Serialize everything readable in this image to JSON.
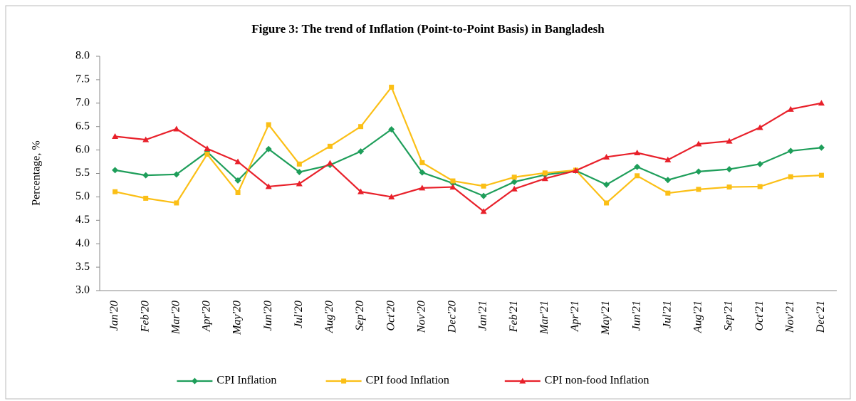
{
  "chart_data": {
    "type": "line",
    "title": "Figure 3: The trend of Inflation (Point-to-Point Basis) in Bangladesh",
    "y_label": "Percentage, %",
    "categories": [
      "Jan'20",
      "Feb'20",
      "Mar'20",
      "Apr'20",
      "May'20",
      "Jun'20",
      "Jul'20",
      "Aug'20",
      "Sep'20",
      "Oct'20",
      "Nov'20",
      "Dec'20",
      "Jan'21",
      "Feb'21",
      "Mar'21",
      "Apr'21",
      "May'21",
      "Jun'21",
      "Jul'21",
      "Aug'21",
      "Sep'21",
      "Oct'21",
      "Nov'21",
      "Dec'21"
    ],
    "series": [
      {
        "name": "CPI Inflation",
        "color": "#1e9e5a",
        "marker": "diamond",
        "values": [
          5.57,
          5.46,
          5.48,
          5.96,
          5.35,
          6.02,
          5.53,
          5.68,
          5.97,
          6.44,
          5.52,
          5.29,
          5.02,
          5.32,
          5.47,
          5.56,
          5.26,
          5.64,
          5.36,
          5.54,
          5.59,
          5.7,
          5.98,
          6.05
        ]
      },
      {
        "name": "CPI food Inflation",
        "color": "#fbbf16",
        "marker": "square",
        "values": [
          5.11,
          4.97,
          4.87,
          5.91,
          5.09,
          6.54,
          5.7,
          6.08,
          6.5,
          7.34,
          5.73,
          5.34,
          5.23,
          5.42,
          5.51,
          5.57,
          4.87,
          5.45,
          5.08,
          5.16,
          5.21,
          5.22,
          5.43,
          5.46
        ]
      },
      {
        "name": "CPI non-food Inflation",
        "color": "#e8202a",
        "marker": "triangle",
        "values": [
          6.29,
          6.22,
          6.45,
          6.03,
          5.75,
          5.22,
          5.28,
          5.72,
          5.11,
          5.0,
          5.19,
          5.21,
          4.69,
          5.17,
          5.39,
          5.56,
          5.85,
          5.94,
          5.79,
          6.13,
          6.19,
          6.48,
          6.87,
          7.0
        ]
      }
    ],
    "ylim": [
      3.0,
      8.0
    ],
    "yticks": [
      {
        "value": 3,
        "label": "3.0"
      },
      {
        "value": 3.5,
        "label": "3.5"
      },
      {
        "value": 4,
        "label": "4.0"
      },
      {
        "value": 4.5,
        "label": "4.5"
      },
      {
        "value": 5,
        "label": "5.0"
      },
      {
        "value": 5.5,
        "label": "5.5"
      },
      {
        "value": 6,
        "label": "6.0"
      },
      {
        "value": 6.5,
        "label": "6.5"
      },
      {
        "value": 7,
        "label": "7.0"
      },
      {
        "value": 7.5,
        "label": "7.5"
      },
      {
        "value": 8,
        "label": "8.0"
      }
    ],
    "legend": "bottom"
  }
}
